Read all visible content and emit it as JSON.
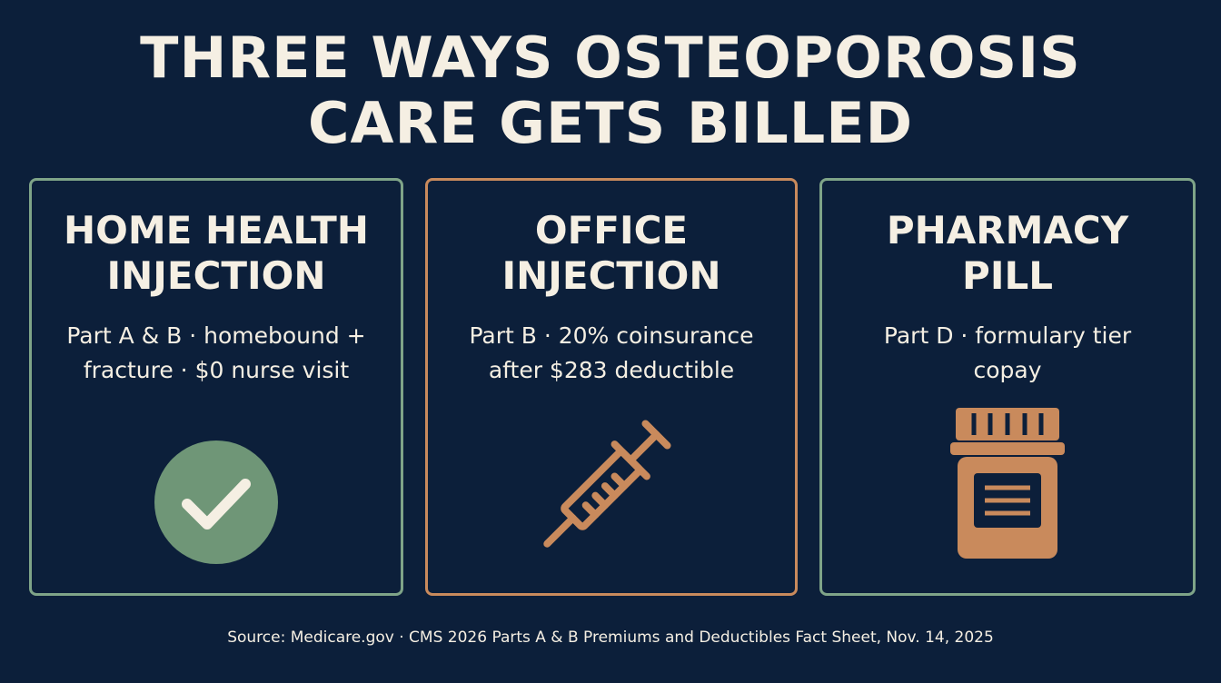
{
  "header": {
    "title_lines": [
      "THREE WAYS OSTEOPOROSIS",
      "CARE GETS BILLED"
    ]
  },
  "cards": [
    {
      "title_lines": [
        "HOME HEALTH",
        "INJECTION"
      ],
      "detail_lines": [
        "Part A & B · homebound +",
        "fracture · $0 nurse visit"
      ]
    },
    {
      "title_lines": [
        "OFFICE",
        "INJECTION"
      ],
      "detail_lines": [
        "Part B · 20% coinsurance",
        "after $283 deductible"
      ]
    },
    {
      "title_lines": [
        "PHARMACY",
        "PILL"
      ],
      "detail_lines": [
        "Part D · formulary tier",
        "copay"
      ]
    }
  ],
  "footer": {
    "source": "Source: Medicare.gov · CMS 2026 Parts A & B Premiums and Deductibles Fact Sheet, Nov. 14, 2025"
  }
}
